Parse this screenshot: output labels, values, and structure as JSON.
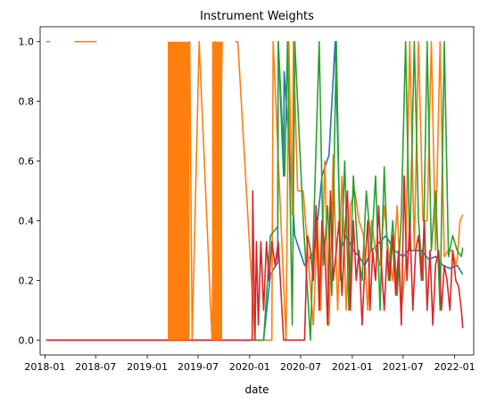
{
  "chart_data": {
    "type": "line",
    "title": "Instrument Weights",
    "xlabel": "date",
    "ylabel": "",
    "xlim": [
      "2017-12-15",
      "2022-03-10"
    ],
    "ylim": [
      -0.05,
      1.05
    ],
    "x_ticks": [
      "2018-01",
      "2018-07",
      "2019-01",
      "2019-07",
      "2020-01",
      "2020-07",
      "2021-01",
      "2021-07",
      "2022-01"
    ],
    "y_ticks": [
      0.0,
      0.2,
      0.4,
      0.6,
      0.8,
      1.0
    ],
    "grid": false,
    "colors": {
      "series_1": "#1f77b4",
      "series_2": "#ff7f0e",
      "series_3": "#2ca02c",
      "series_4": "#d62728"
    },
    "series": [
      {
        "color": "#1f77b4",
        "x": [
          "2018-01-05",
          "2020-02-20",
          "2020-03-15",
          "2020-04-10",
          "2020-04-12",
          "2020-05-01",
          "2020-05-03",
          "2020-06-10",
          "2020-07-15",
          "2020-08-20",
          "2020-09-15",
          "2020-10-10",
          "2020-11-01",
          "2020-11-20",
          "2020-12-10",
          "2021-01-05",
          "2021-01-25",
          "2021-02-15",
          "2021-03-10",
          "2021-04-01",
          "2021-05-01",
          "2021-06-01",
          "2021-07-01",
          "2021-07-20",
          "2021-08-15",
          "2021-09-05",
          "2021-10-01",
          "2021-10-25",
          "2021-11-20",
          "2021-12-15",
          "2022-01-10",
          "2022-01-30"
        ],
        "y": [
          0.0,
          0.0,
          0.22,
          0.26,
          1.0,
          0.55,
          0.9,
          0.35,
          0.25,
          0.3,
          0.55,
          0.62,
          1.0,
          0.3,
          0.35,
          0.3,
          0.28,
          0.25,
          0.3,
          0.32,
          0.35,
          0.3,
          0.28,
          0.3,
          0.3,
          0.3,
          0.27,
          0.28,
          0.25,
          0.24,
          0.25,
          0.22
        ]
      },
      {
        "color": "#ff7f0e",
        "x": [
          "2018-01-05",
          "2018-01-20",
          "2018-01-21",
          "2018-02-10",
          "2018-02-11",
          "2018-04-15",
          "2018-04-16",
          "2018-07-05",
          "2018-08-20",
          "2018-09-25",
          "2018-11-20",
          "2018-11-25",
          "2019-01-01",
          "2019-03-15",
          "2019-05-20",
          "2019-06-01",
          "2019-06-10",
          "2019-07-05",
          "2019-08-20",
          "2019-09-01",
          "2019-09-10",
          "2019-09-25",
          "2019-10-15",
          "2019-11-10",
          "2019-11-20",
          "2020-01-20",
          "2020-02-20",
          "2020-03-20",
          "2020-03-25",
          "2020-05-10",
          "2020-05-20",
          "2020-06-01",
          "2020-06-05",
          "2020-06-20",
          "2020-07-10",
          "2020-08-15",
          "2020-08-30",
          "2020-09-10",
          "2020-09-25",
          "2020-10-10",
          "2020-10-25",
          "2020-11-10",
          "2020-11-25",
          "2020-12-10",
          "2020-12-25",
          "2021-01-10",
          "2021-01-25",
          "2021-02-10",
          "2021-02-25",
          "2021-03-10",
          "2021-03-25",
          "2021-04-10",
          "2021-04-25",
          "2021-05-10",
          "2021-05-25",
          "2021-06-10",
          "2021-06-25",
          "2021-07-10",
          "2021-07-25",
          "2021-08-10",
          "2021-08-25",
          "2021-09-10",
          "2021-09-25",
          "2021-10-10",
          "2021-10-25",
          "2021-11-10",
          "2021-11-25",
          "2021-12-10",
          "2021-12-25",
          "2022-01-05",
          "2022-01-10",
          "2022-01-20",
          "2022-01-30"
        ],
        "y": [
          1.0,
          1.0,
          null,
          1.0,
          1.0,
          null,
          1.0,
          1.0,
          null,
          null,
          1.0,
          null,
          null,
          0.0,
          0.0,
          1.0,
          0.0,
          1.0,
          0.0,
          1.0,
          0.0,
          1.0,
          null,
          1.0,
          1.0,
          0.0,
          0.0,
          0.0,
          1.0,
          0.0,
          1.0,
          0.42,
          1.0,
          0.5,
          0.5,
          0.05,
          0.4,
          0.1,
          0.6,
          0.05,
          0.62,
          0.1,
          0.55,
          0.1,
          0.45,
          0.5,
          0.4,
          0.35,
          0.1,
          0.4,
          0.3,
          0.25,
          0.45,
          0.3,
          0.2,
          0.45,
          0.1,
          0.25,
          1.0,
          0.3,
          1.0,
          0.4,
          0.4,
          1.0,
          0.3,
          1.0,
          0.28,
          0.3,
          0.3,
          0.25,
          0.27,
          0.4,
          0.42
        ]
      },
      {
        "color": "#2ca02c",
        "x": [
          "2018-01-05",
          "2020-02-20",
          "2020-03-15",
          "2020-04-10",
          "2020-04-12",
          "2020-05-05",
          "2020-05-15",
          "2020-06-01",
          "2020-06-10",
          "2020-07-10",
          "2020-08-05",
          "2020-08-20",
          "2020-09-05",
          "2020-09-20",
          "2020-10-05",
          "2020-10-20",
          "2020-11-05",
          "2020-11-20",
          "2020-12-05",
          "2020-12-20",
          "2021-01-05",
          "2021-01-20",
          "2021-02-05",
          "2021-02-20",
          "2021-03-10",
          "2021-03-25",
          "2021-04-10",
          "2021-04-25",
          "2021-05-10",
          "2021-05-25",
          "2021-06-10",
          "2021-06-25",
          "2021-07-10",
          "2021-07-25",
          "2021-08-10",
          "2021-08-25",
          "2021-09-10",
          "2021-09-25",
          "2021-10-10",
          "2021-10-25",
          "2021-11-10",
          "2021-11-25",
          "2021-12-10",
          "2021-12-25",
          "2022-01-10",
          "2022-01-25",
          "2022-01-30"
        ],
        "y": [
          0.0,
          0.0,
          0.35,
          0.38,
          1.0,
          0.55,
          1.0,
          0.05,
          1.0,
          0.4,
          0.0,
          0.5,
          1.0,
          0.25,
          0.45,
          0.15,
          1.0,
          0.2,
          0.6,
          0.1,
          0.55,
          0.3,
          0.2,
          0.5,
          0.3,
          0.55,
          0.1,
          0.58,
          0.2,
          0.4,
          0.15,
          0.42,
          1.0,
          0.3,
          1.0,
          0.4,
          0.2,
          1.0,
          0.3,
          0.5,
          0.1,
          1.0,
          0.28,
          0.35,
          0.3,
          0.28,
          0.31
        ]
      },
      {
        "color": "#d62728",
        "x": [
          "2018-01-05",
          "2020-01-10",
          "2020-01-12",
          "2020-01-20",
          "2020-01-25",
          "2020-02-01",
          "2020-02-10",
          "2020-02-20",
          "2020-03-01",
          "2020-03-10",
          "2020-03-20",
          "2020-04-01",
          "2020-04-12",
          "2020-05-01",
          "2020-07-15",
          "2020-07-25",
          "2020-08-05",
          "2020-08-15",
          "2020-08-25",
          "2020-09-05",
          "2020-09-15",
          "2020-09-25",
          "2020-10-05",
          "2020-10-15",
          "2020-10-25",
          "2020-11-05",
          "2020-11-15",
          "2020-11-25",
          "2020-12-05",
          "2020-12-15",
          "2020-12-25",
          "2021-01-05",
          "2021-01-15",
          "2021-01-25",
          "2021-02-05",
          "2021-02-15",
          "2021-02-25",
          "2021-03-05",
          "2021-03-15",
          "2021-03-25",
          "2021-04-05",
          "2021-04-15",
          "2021-04-25",
          "2021-05-05",
          "2021-05-15",
          "2021-05-25",
          "2021-06-05",
          "2021-06-15",
          "2021-06-25",
          "2021-07-05",
          "2021-07-15",
          "2021-07-25",
          "2021-08-05",
          "2021-08-15",
          "2021-08-25",
          "2021-09-05",
          "2021-09-15",
          "2021-09-25",
          "2021-10-05",
          "2021-10-15",
          "2021-10-25",
          "2021-11-05",
          "2021-11-15",
          "2021-11-25",
          "2021-12-05",
          "2021-12-15",
          "2021-12-25",
          "2022-01-05",
          "2022-01-15",
          "2022-01-25",
          "2022-01-30"
        ],
        "y": [
          0.0,
          0.0,
          0.5,
          0.0,
          0.33,
          0.05,
          0.33,
          0.1,
          0.33,
          0.2,
          0.33,
          0.25,
          0.33,
          0.0,
          0.0,
          0.35,
          0.3,
          0.2,
          0.45,
          0.1,
          0.4,
          0.3,
          0.05,
          0.5,
          0.2,
          0.3,
          0.4,
          0.15,
          0.35,
          0.5,
          0.1,
          0.4,
          0.2,
          0.3,
          0.05,
          0.25,
          0.4,
          0.1,
          0.3,
          0.2,
          0.45,
          0.25,
          0.1,
          0.3,
          0.2,
          0.35,
          0.15,
          0.3,
          0.05,
          0.55,
          0.2,
          0.4,
          0.1,
          0.3,
          0.35,
          0.2,
          0.4,
          0.1,
          0.3,
          0.05,
          0.25,
          0.3,
          0.1,
          0.25,
          0.2,
          0.1,
          0.3,
          0.2,
          0.18,
          0.1,
          0.04
        ]
      }
    ]
  }
}
